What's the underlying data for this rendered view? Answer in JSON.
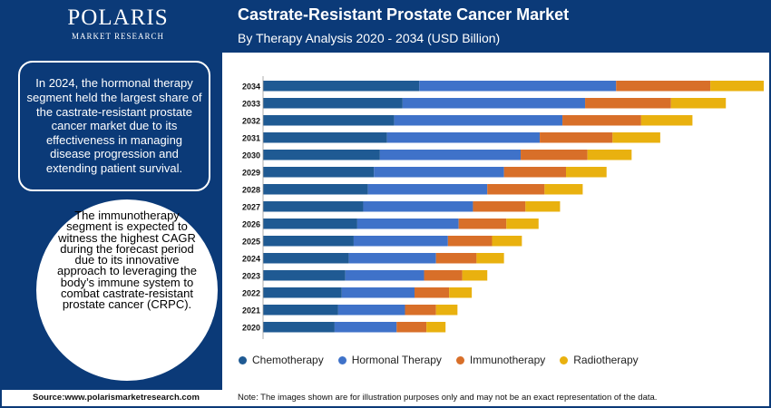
{
  "brand": {
    "name": "POLARIS",
    "tagline": "MARKET RESEARCH"
  },
  "header": {
    "title": "Castrate-Resistant Prostate Cancer Market",
    "subtitle": "By Therapy Analysis 2020 - 2034 (USD Billion)"
  },
  "sidebar": {
    "highlight_text": "In 2024, the hormonal therapy segment held the largest share of the castrate-resistant prostate cancer market due to its effectiveness in managing disease progression and extending patient survival.",
    "circle_text": "The immunotherapy segment is expected to witness the highest CAGR during the forecast period due to its innovative approach to leveraging the body’s immune system to combat castrate-resistant prostate cancer (CRPC)."
  },
  "footer": {
    "source": "Source:www.polarismarketresearch.com",
    "note": "Note: The images shown are for illustration purposes only and may not be an exact representation of the data."
  },
  "colors": {
    "brand_navy": "#0b3a78",
    "Chemotherapy": "#1f5a93",
    "Hormonal Therapy": "#3f72c9",
    "Immunotherapy": "#d86f29",
    "Radiotherapy": "#e9b10f"
  },
  "chart_data": {
    "type": "bar",
    "orientation": "horizontal",
    "stacked": true,
    "categories": [
      "2034",
      "2033",
      "2032",
      "2031",
      "2030",
      "2029",
      "2028",
      "2027",
      "2026",
      "2025",
      "2024",
      "2023",
      "2022",
      "2021",
      "2020"
    ],
    "series": [
      {
        "name": "Chemotherapy",
        "values": [
          13.1,
          11.7,
          11.0,
          10.4,
          9.8,
          9.3,
          8.8,
          8.4,
          7.9,
          7.6,
          7.2,
          6.9,
          6.6,
          6.3,
          6.0
        ]
      },
      {
        "name": "Hormonal Therapy",
        "values": [
          16.5,
          15.3,
          14.1,
          12.8,
          11.8,
          10.9,
          10.0,
          9.2,
          8.5,
          7.9,
          7.3,
          6.6,
          6.1,
          5.6,
          5.2
        ]
      },
      {
        "name": "Immunotherapy",
        "values": [
          7.9,
          7.2,
          6.6,
          6.1,
          5.6,
          5.2,
          4.8,
          4.4,
          4.0,
          3.7,
          3.4,
          3.2,
          2.9,
          2.6,
          2.5
        ]
      },
      {
        "name": "Radiotherapy",
        "values": [
          5.0,
          4.6,
          4.3,
          4.0,
          3.7,
          3.4,
          3.2,
          2.9,
          2.7,
          2.5,
          2.3,
          2.1,
          1.9,
          1.8,
          1.6
        ]
      }
    ],
    "grid": false,
    "legend_position": "bottom"
  }
}
